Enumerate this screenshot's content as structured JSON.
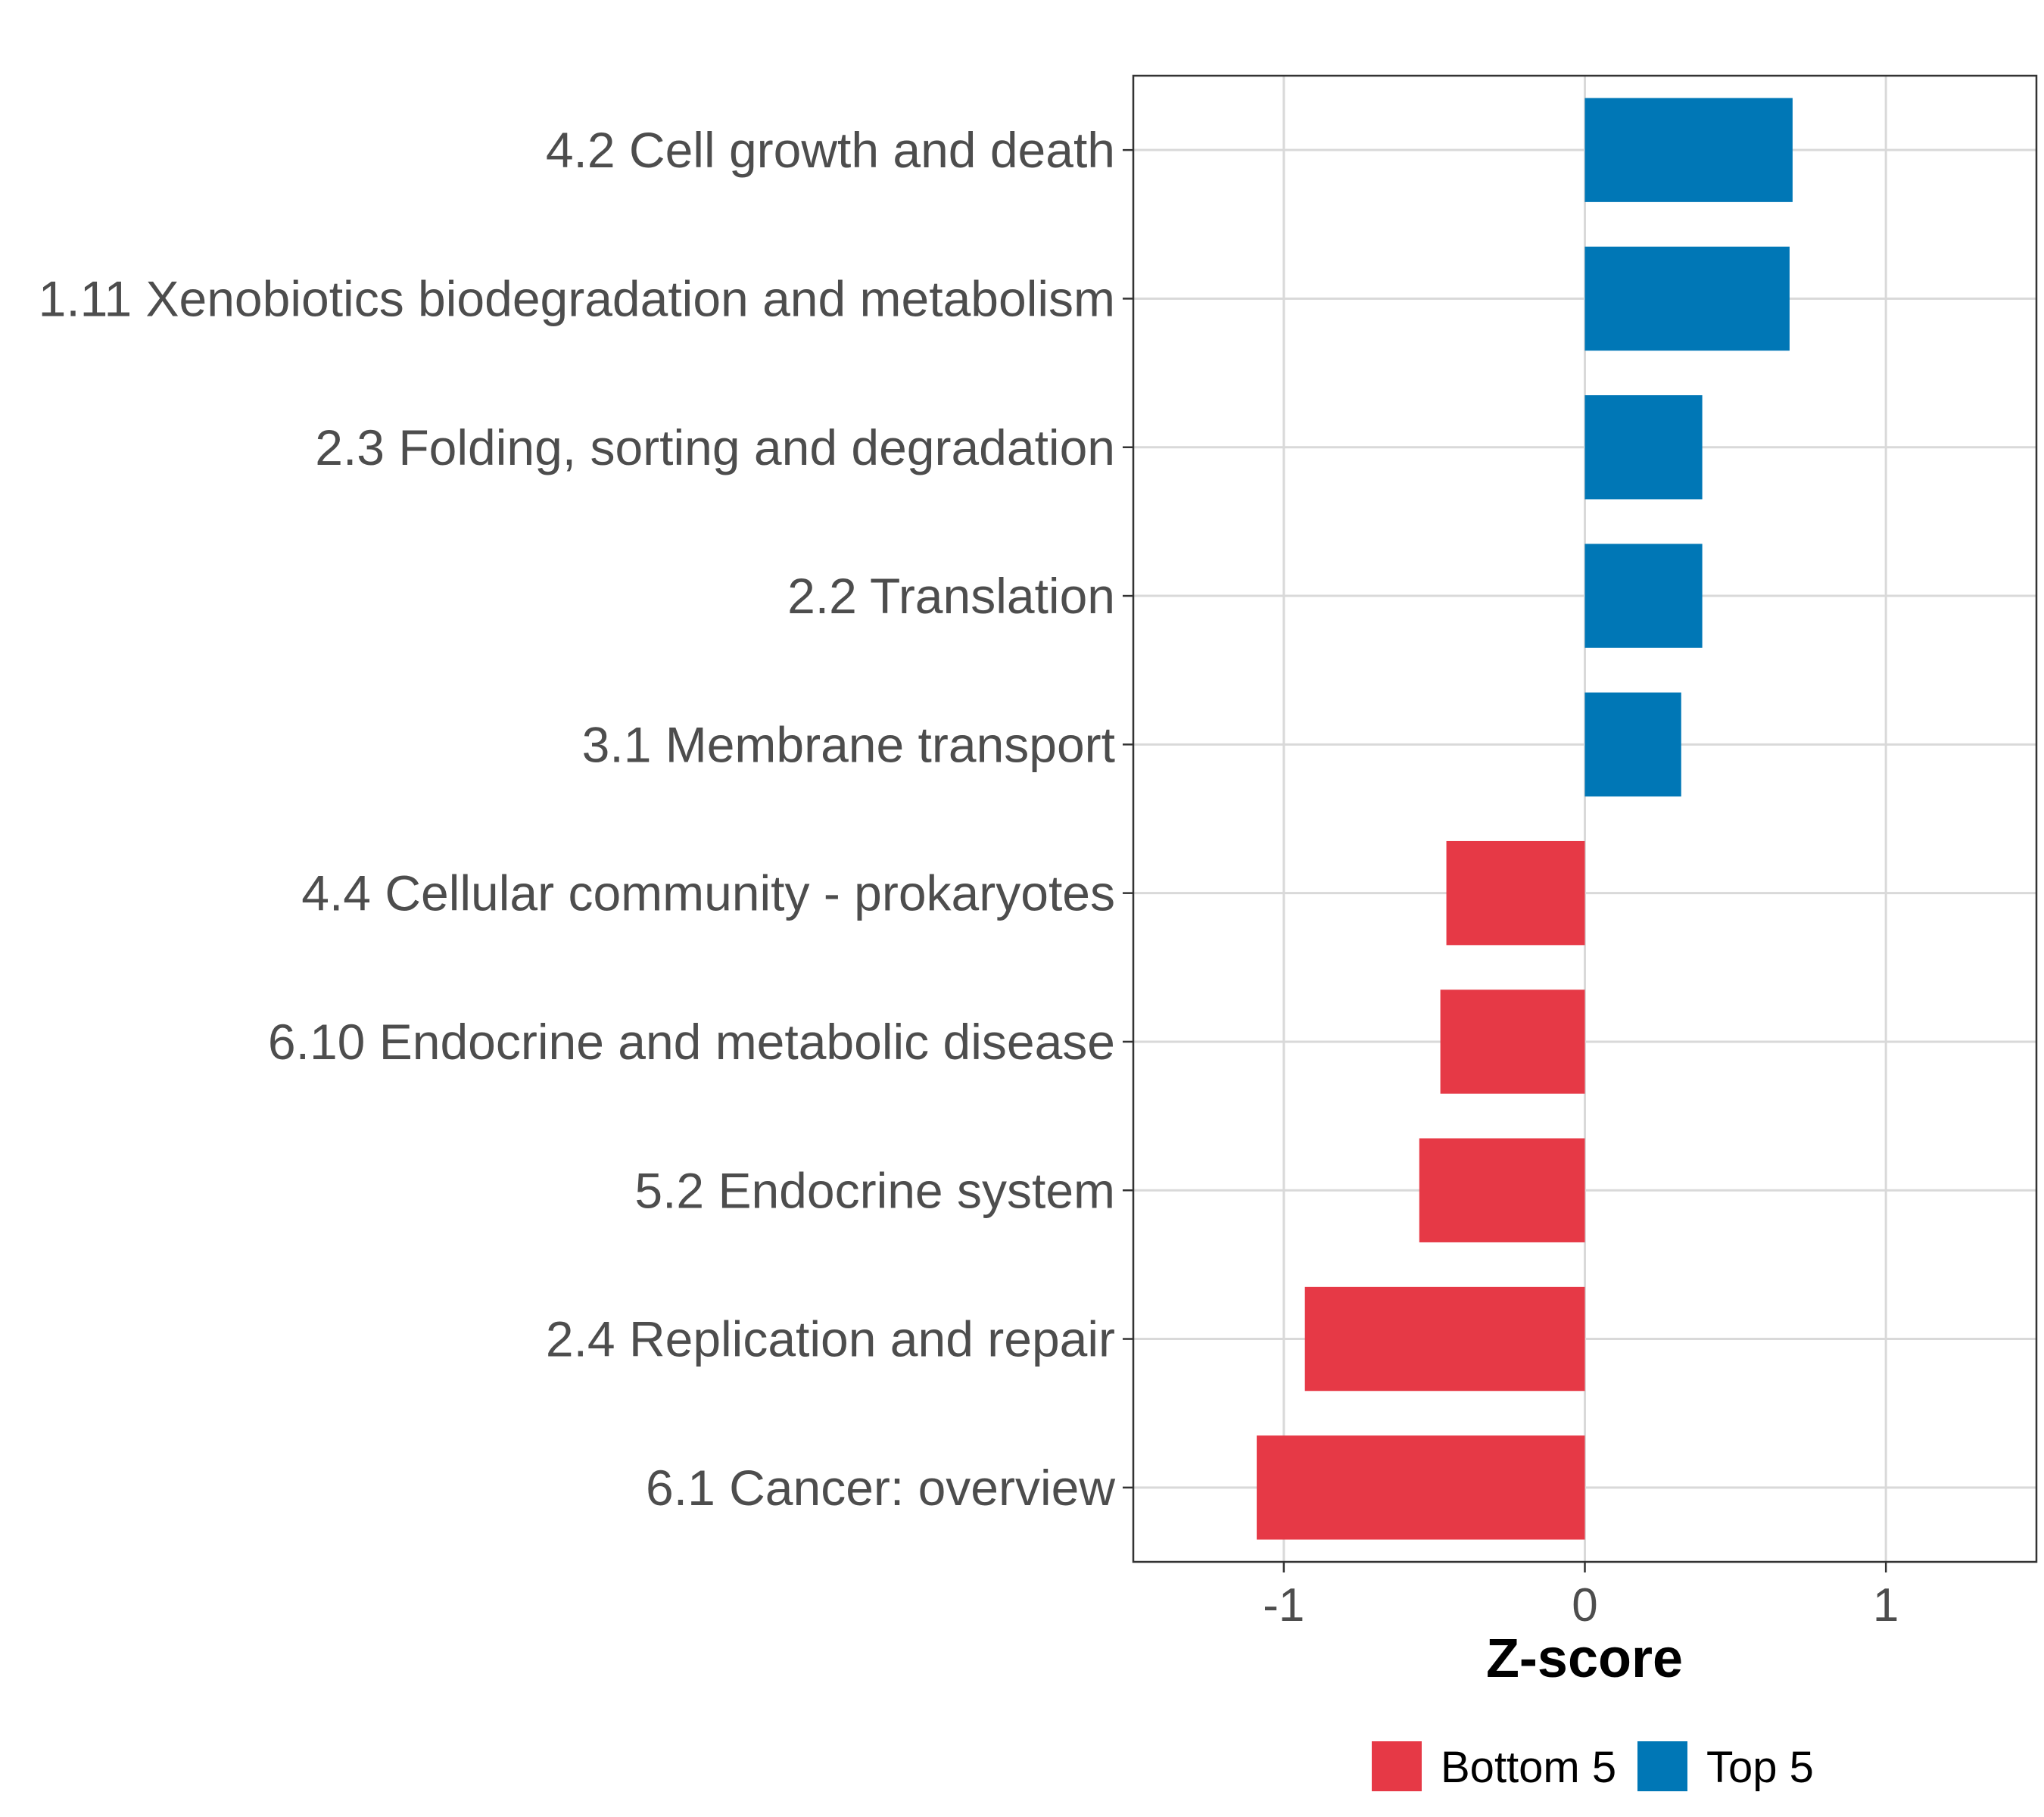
{
  "chart_data": {
    "type": "bar",
    "orientation": "horizontal",
    "title": "",
    "xlabel": "Z-score",
    "ylabel": "",
    "xlim": [
      -1.5,
      1.5
    ],
    "xticks": [
      -1,
      0,
      1
    ],
    "xtick_labels": [
      "-1",
      "0",
      "1"
    ],
    "grid": true,
    "legend_position": "bottom",
    "categories": [
      "4.2 Cell growth and death",
      "1.11 Xenobiotics biodegradation and metabolism",
      "2.3 Folding, sorting and degradation",
      "2.2 Translation",
      "3.1 Membrane transport",
      "4.4 Cellular community - prokaryotes",
      "6.10 Endocrine and metabolic disease",
      "5.2 Endocrine system",
      "2.4 Replication and repair",
      "6.1 Cancer: overview"
    ],
    "values": [
      0.69,
      0.68,
      0.39,
      0.39,
      0.32,
      -0.46,
      -0.48,
      -0.55,
      -0.93,
      -1.09
    ],
    "groups": [
      "Top 5",
      "Top 5",
      "Top 5",
      "Top 5",
      "Top 5",
      "Bottom 5",
      "Bottom 5",
      "Bottom 5",
      "Bottom 5",
      "Bottom 5"
    ],
    "legend": [
      {
        "name": "Bottom 5",
        "color": "#e63946"
      },
      {
        "name": "Top 5",
        "color": "#0077b6"
      }
    ]
  }
}
